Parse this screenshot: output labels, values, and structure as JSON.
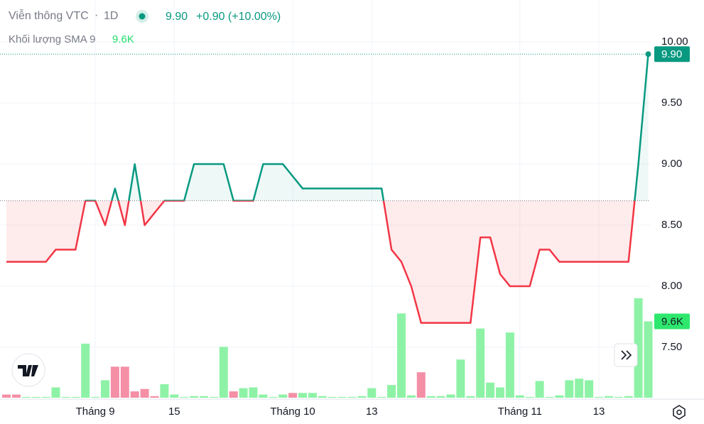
{
  "header": {
    "symbol": "Viễn thông VTC",
    "interval": "1D",
    "price": "9.90",
    "change": "+0.90 (+10.00%)",
    "volume_title": "Khối lượng SMA 9",
    "volume_value": "9.6K"
  },
  "chart_data": {
    "type": "baseline",
    "categories": [
      null,
      null,
      null,
      null,
      null,
      null,
      null,
      null,
      null,
      "Tháng 9",
      null,
      null,
      null,
      null,
      null,
      null,
      null,
      "15",
      null,
      null,
      null,
      null,
      null,
      null,
      null,
      null,
      null,
      null,
      null,
      "Tháng 10",
      null,
      null,
      null,
      null,
      null,
      null,
      null,
      "13",
      null,
      null,
      null,
      null,
      null,
      null,
      null,
      null,
      null,
      null,
      null,
      null,
      null,
      null,
      "Tháng 11",
      null,
      null,
      null,
      null,
      null,
      null,
      null,
      "13",
      null,
      null,
      null,
      null,
      null
    ],
    "baseline": 8.7,
    "up_color": "#089981",
    "down_color": "#f23645",
    "series": [
      {
        "name": "Viễn thông VTC",
        "values": [
          8.2,
          8.2,
          8.2,
          8.2,
          8.2,
          8.3,
          8.3,
          8.3,
          8.7,
          8.7,
          8.5,
          8.8,
          8.5,
          9.0,
          8.5,
          8.6,
          8.7,
          8.7,
          8.7,
          9.0,
          9.0,
          9.0,
          9.0,
          8.7,
          8.7,
          8.7,
          9.0,
          9.0,
          9.0,
          8.9,
          8.8,
          8.8,
          8.8,
          8.8,
          8.8,
          8.8,
          8.8,
          8.8,
          8.8,
          8.3,
          8.2,
          8.0,
          7.7,
          7.7,
          7.7,
          7.7,
          7.7,
          7.7,
          8.4,
          8.4,
          8.1,
          8.0,
          8.0,
          8.0,
          8.3,
          8.3,
          8.2,
          8.2,
          8.2,
          8.2,
          8.2,
          8.2,
          8.2,
          8.2,
          9.0,
          9.9
        ]
      },
      {
        "name": "Khối lượng",
        "axis": "y2",
        "type": "bar",
        "values": [
          0.4,
          0.4,
          0.1,
          0.1,
          0.1,
          1.3,
          0.1,
          0.1,
          6.8,
          0.1,
          2.2,
          3.9,
          3.9,
          0.8,
          1.1,
          0.2,
          1.7,
          0.4,
          0.1,
          0.2,
          0.2,
          0.1,
          6.4,
          0.8,
          1.2,
          1.3,
          0.4,
          0.1,
          0.4,
          0.6,
          0.6,
          0.6,
          0.2,
          0.1,
          0.1,
          0.1,
          0.2,
          1.2,
          0.1,
          1.6,
          10.6,
          0.3,
          3.2,
          0.2,
          0.2,
          0.4,
          4.8,
          0.2,
          8.7,
          1.9,
          1.3,
          8.2,
          0.3,
          0.1,
          2.1,
          0.1,
          0.3,
          2.2,
          2.4,
          2.2,
          0.1,
          0.2,
          0.1,
          0.2,
          12.5,
          9.6
        ],
        "colors": [
          "#f48fa6",
          "#f48fa6",
          "#8ef2a6",
          "#8ef2a6",
          "#8ef2a6",
          "#8ef2a6",
          "#8ef2a6",
          "#8ef2a6",
          "#8ef2a6",
          "#8ef2a6",
          "#8ef2a6",
          "#f48fa6",
          "#f48fa6",
          "#f48fa6",
          "#f48fa6",
          "#f48fa6",
          "#8ef2a6",
          "#8ef2a6",
          "#8ef2a6",
          "#8ef2a6",
          "#8ef2a6",
          "#8ef2a6",
          "#8ef2a6",
          "#f48fa6",
          "#8ef2a6",
          "#8ef2a6",
          "#8ef2a6",
          "#8ef2a6",
          "#8ef2a6",
          "#f48fa6",
          "#8ef2a6",
          "#8ef2a6",
          "#8ef2a6",
          "#8ef2a6",
          "#8ef2a6",
          "#8ef2a6",
          "#8ef2a6",
          "#8ef2a6",
          "#8ef2a6",
          "#8ef2a6",
          "#8ef2a6",
          "#8ef2a6",
          "#f48fa6",
          "#8ef2a6",
          "#8ef2a6",
          "#8ef2a6",
          "#8ef2a6",
          "#8ef2a6",
          "#8ef2a6",
          "#8ef2a6",
          "#8ef2a6",
          "#8ef2a6",
          "#8ef2a6",
          "#8ef2a6",
          "#8ef2a6",
          "#8ef2a6",
          "#8ef2a6",
          "#8ef2a6",
          "#8ef2a6",
          "#8ef2a6",
          "#8ef2a6",
          "#8ef2a6",
          "#8ef2a6",
          "#8ef2a6",
          "#8ef2a6",
          "#8ef2a6"
        ]
      }
    ],
    "ylim": [
      7.076,
      10.343
    ],
    "yticks": [
      {
        "value": 7.5,
        "label": "7.50"
      },
      {
        "value": 8,
        "label": "8.00"
      },
      {
        "value": 8.5,
        "label": "8.50"
      },
      {
        "value": 9,
        "label": "9.00"
      },
      {
        "value": 9.5,
        "label": "9.50"
      },
      {
        "value": 10,
        "label": "10.00"
      }
    ],
    "y2lim": [
      0,
      50
    ],
    "grid": true
  }
}
